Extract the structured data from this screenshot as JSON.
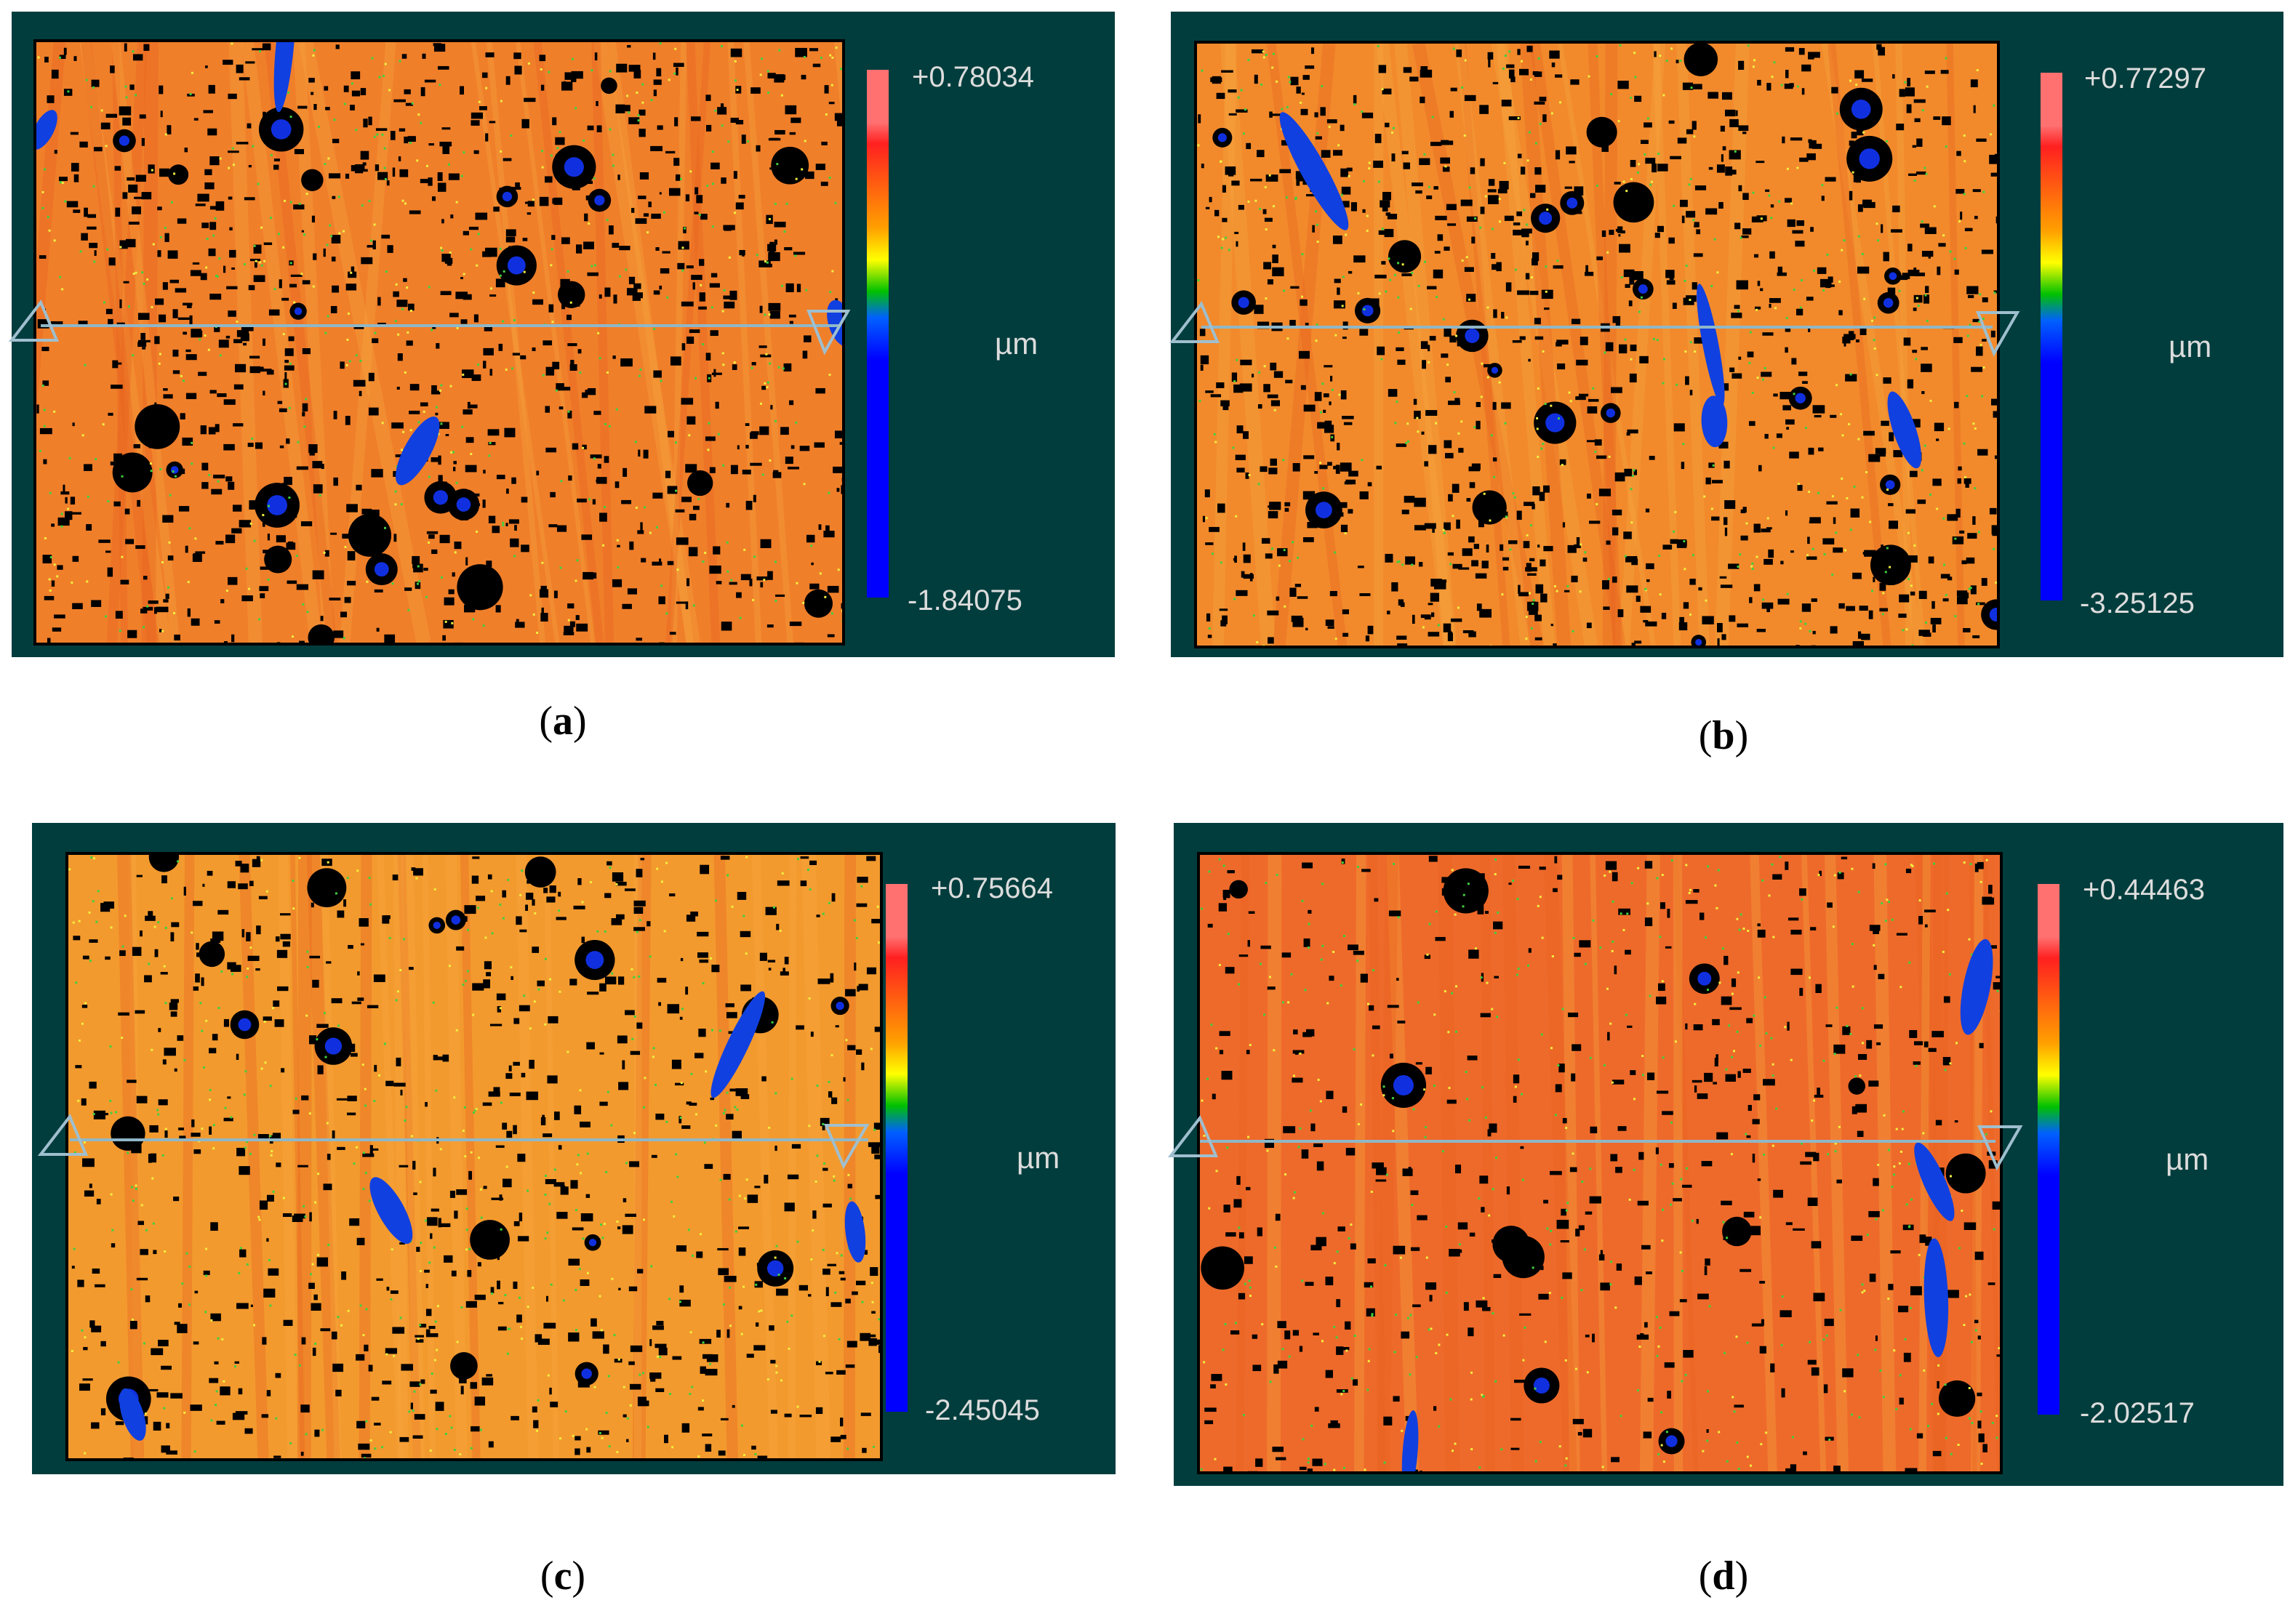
{
  "panels": [
    {
      "id": "a",
      "max_label": "+0.78034",
      "min_label": "-1.84075",
      "unit": "µm",
      "caption_letter": "a",
      "base_color": "#f07f2a",
      "defect_density": 1.0
    },
    {
      "id": "b",
      "max_label": "+0.77297",
      "min_label": "-3.25125",
      "unit": "µm",
      "caption_letter": "b",
      "base_color": "#f28a2c",
      "defect_density": 1.0
    },
    {
      "id": "c",
      "max_label": "+0.75664",
      "min_label": "-2.45045",
      "unit": "µm",
      "caption_letter": "c",
      "base_color": "#f39a2e",
      "defect_density": 0.7
    },
    {
      "id": "d",
      "max_label": "+0.44463",
      "min_label": "-2.02517",
      "unit": "µm",
      "caption_letter": "d",
      "base_color": "#ee6a2a",
      "defect_density": 0.45
    }
  ],
  "colors": {
    "panel_bg": "#023d3d",
    "scale_stops": [
      "#ff7070",
      "#ff2020",
      "#ffa000",
      "#ffff00",
      "#00c000",
      "#0060ff",
      "#0000ff"
    ]
  }
}
